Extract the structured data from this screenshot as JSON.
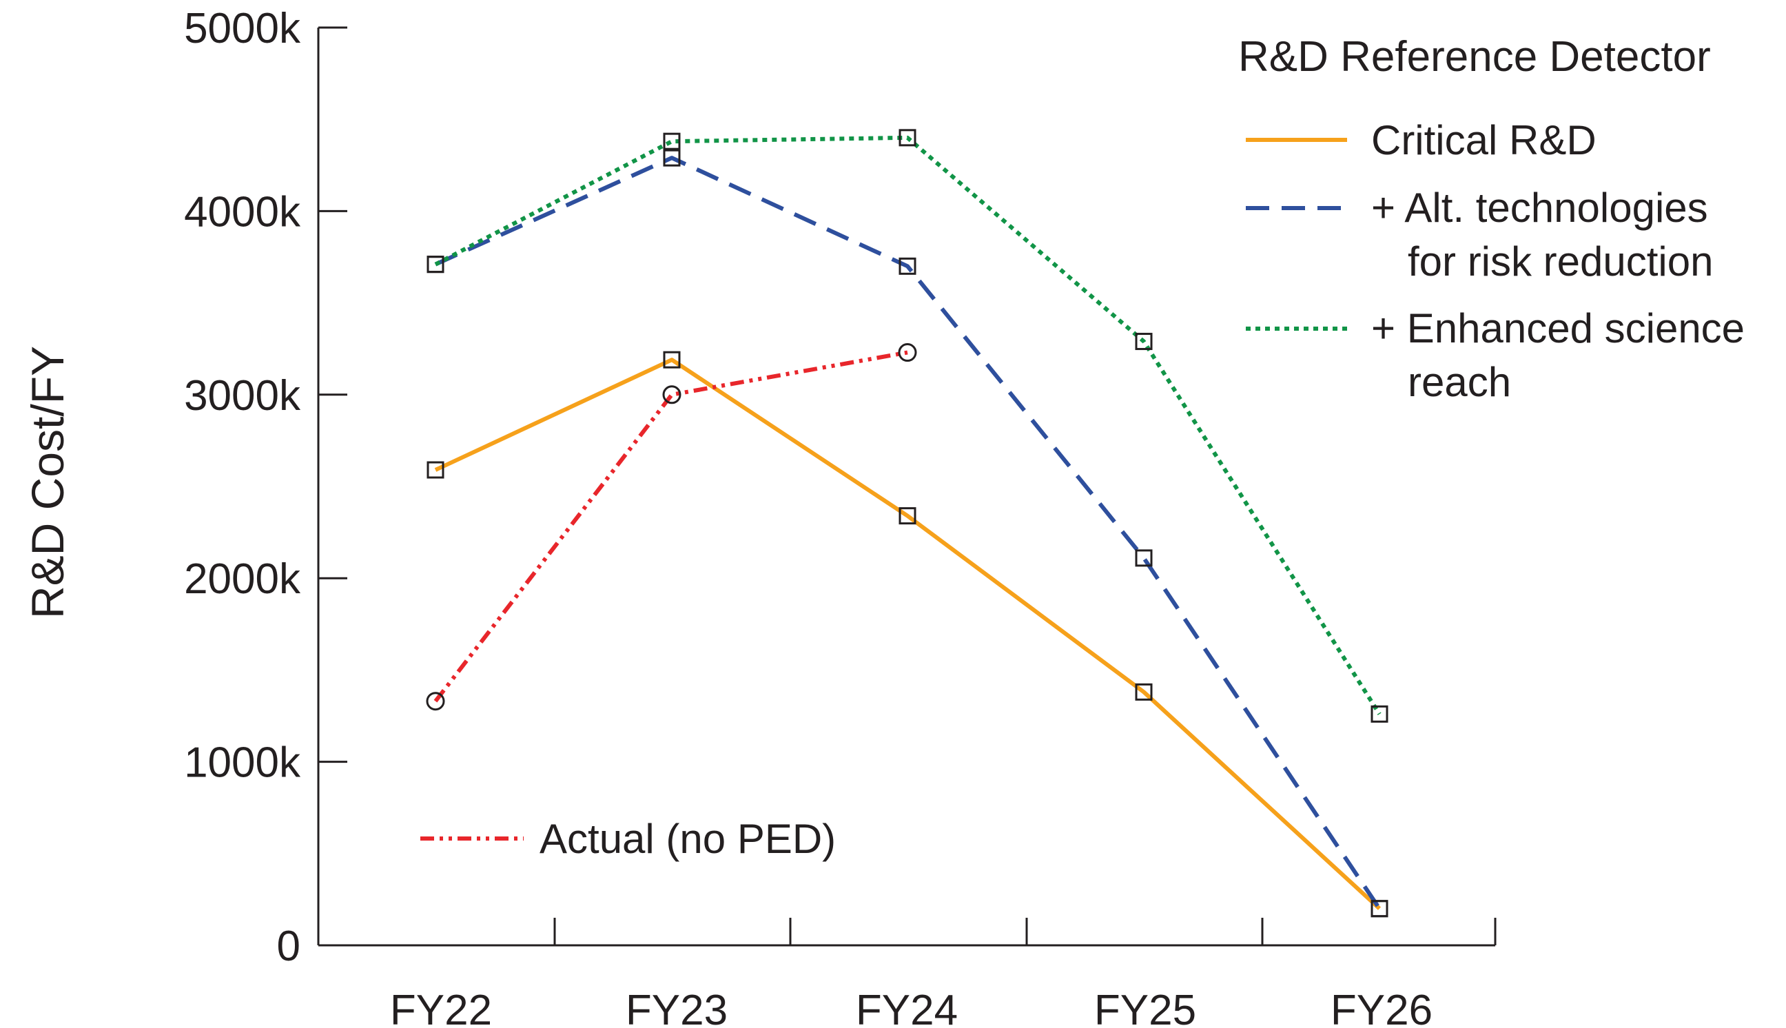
{
  "chart_data": {
    "type": "line",
    "title": "",
    "xlabel": "",
    "ylabel": "R&D Cost/FY",
    "categories": [
      "FY22",
      "FY23",
      "FY24",
      "FY25",
      "FY26"
    ],
    "ylim": [
      0,
      5000
    ],
    "yticks": [
      0,
      1000,
      2000,
      3000,
      4000,
      5000
    ],
    "ytick_labels": [
      "0",
      "1000k",
      "2000k",
      "3000k",
      "4000k",
      "5000k"
    ],
    "legend_title": "R&D Reference Detector",
    "legend_position": "top-right",
    "grid": false,
    "series": [
      {
        "name": "Critical R&D",
        "color": "#f6a11b",
        "line_style": "solid",
        "marker": "square",
        "values": [
          2590,
          3190,
          2340,
          1380,
          200
        ]
      },
      {
        "name": "+ Alt. technologies for risk reduction",
        "legend_lines": [
          "+ Alt. technologies",
          "for risk reduction"
        ],
        "color": "#2e4f9d",
        "line_style": "dashed",
        "marker": "square",
        "values": [
          3710,
          4290,
          3700,
          2110,
          200
        ]
      },
      {
        "name": "+ Enhanced science reach",
        "legend_lines": [
          "+ Enhanced science",
          "reach"
        ],
        "color": "#119447",
        "line_style": "dotted",
        "marker": "square",
        "values": [
          3710,
          4380,
          4400,
          3290,
          1260
        ]
      },
      {
        "name": "Actual (no PED)",
        "color": "#e8262b",
        "line_style": "dash-dot-dot",
        "marker": "circle",
        "values": [
          1330,
          3000,
          3230,
          null,
          null
        ]
      }
    ]
  }
}
